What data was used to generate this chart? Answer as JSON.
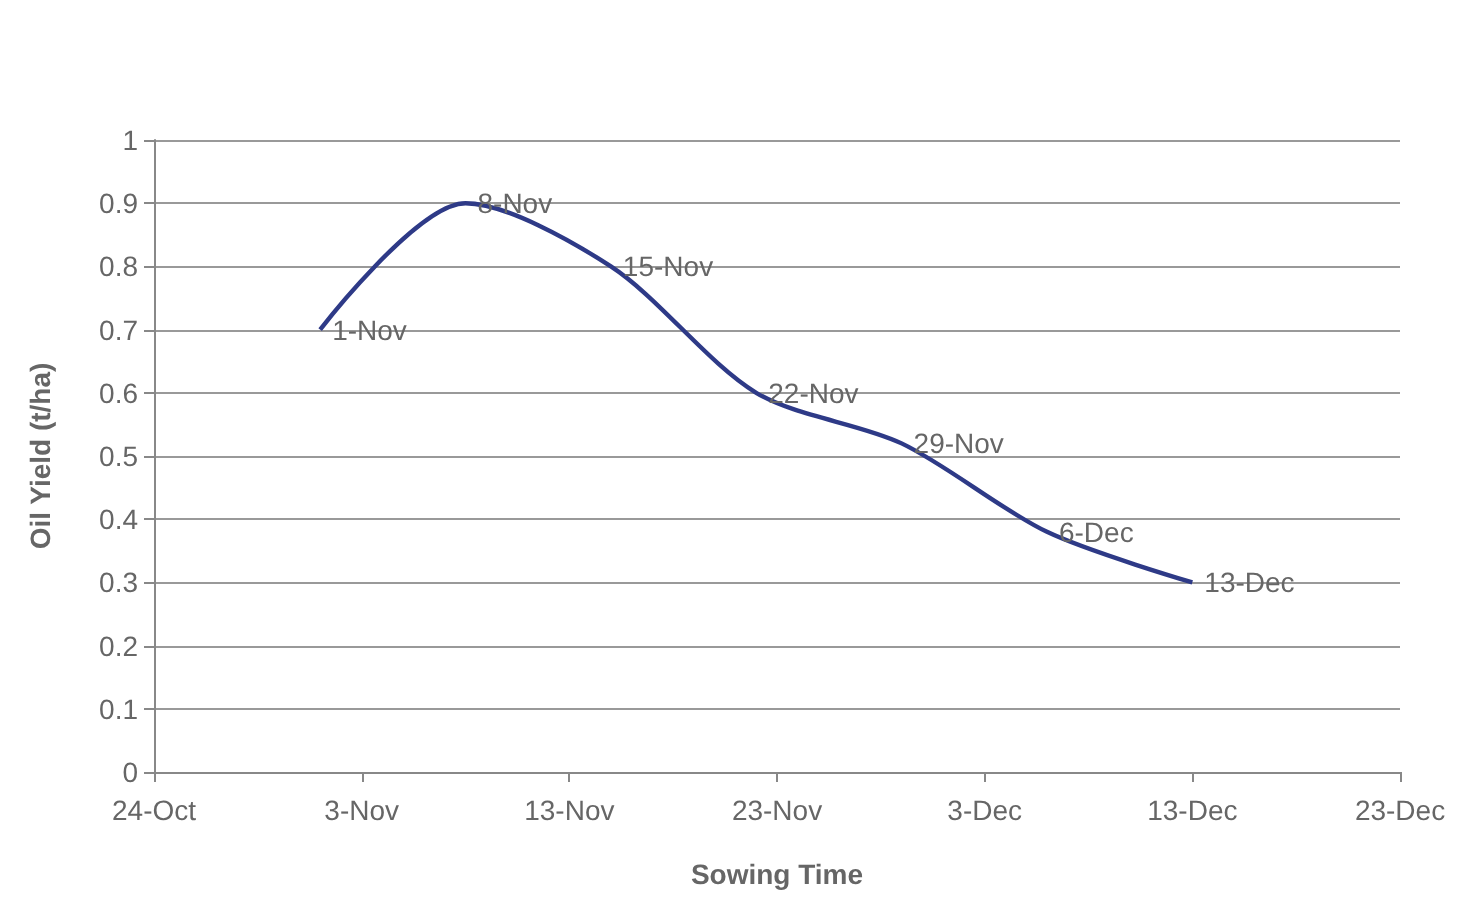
{
  "chart_data": {
    "type": "line",
    "xlabel": "Sowing Time",
    "ylabel": "Oil Yield (t/ha)",
    "x": [
      "--11-01",
      "--11-08",
      "--11-15",
      "--11-22",
      "--11-29",
      "--12-06",
      "--12-13"
    ],
    "series": [
      {
        "color": "#2e3a87",
        "values": [
          0.7,
          0.9,
          0.8,
          0.6,
          0.52,
          0.38,
          0.3
        ],
        "value_labels": [
          "1-Nov",
          "8-Nov",
          "15-Nov",
          "22-Nov",
          "29-Nov",
          "6-Dec",
          "13-Dec"
        ]
      }
    ],
    "xlim": [
      "--10-24",
      "--12-23"
    ],
    "xticks": [
      {
        "value": "--10-24",
        "label": "24-Oct"
      },
      {
        "value": "--11-03",
        "label": "3-Nov"
      },
      {
        "value": "--11-13",
        "label": "13-Nov"
      },
      {
        "value": "--11-23",
        "label": "23-Nov"
      },
      {
        "value": "--12-03",
        "label": "3-Dec"
      },
      {
        "value": "--12-13",
        "label": "13-Dec"
      },
      {
        "value": "--12-23",
        "label": "23-Dec"
      }
    ],
    "ylim": [
      0,
      1
    ],
    "yticks": [
      0,
      0.1,
      0.2,
      0.3,
      0.4,
      0.5,
      0.6,
      0.7,
      0.8,
      0.9,
      1
    ],
    "grid": "y",
    "marker": "none",
    "line_style": "solid"
  }
}
